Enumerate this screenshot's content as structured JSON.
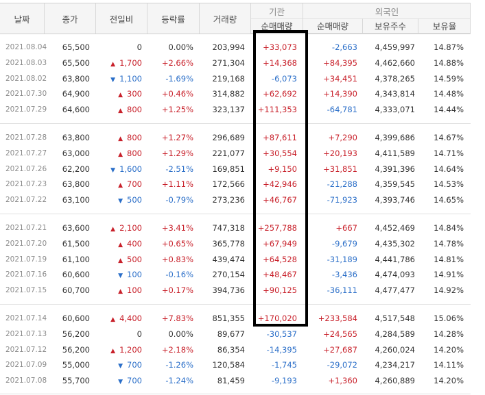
{
  "header": {
    "date": "날짜",
    "close": "종가",
    "change": "전일비",
    "rate": "등락률",
    "volume": "거래량",
    "institution": "기관",
    "institution_net": "순매매량",
    "foreign": "외국인",
    "foreign_net": "순매매량",
    "foreign_hold": "보유주수",
    "foreign_ratio": "보유율"
  },
  "colors": {
    "up": "#c8202a",
    "down": "#2a6ec8",
    "highlight": "#000000"
  },
  "groups": [
    {
      "rows": [
        {
          "date": "2021.08.04",
          "close": "65,500",
          "dir": "none",
          "change": "0",
          "rate": "0.00%",
          "volume": "203,994",
          "inst": "+33,073",
          "foreign": "-2,663",
          "hold": "4,459,997",
          "ratio": "14.87%"
        },
        {
          "date": "2021.08.03",
          "close": "65,500",
          "dir": "up",
          "change": "1,700",
          "rate": "+2.66%",
          "volume": "271,304",
          "inst": "+14,368",
          "foreign": "+84,395",
          "hold": "4,462,660",
          "ratio": "14.88%"
        },
        {
          "date": "2021.08.02",
          "close": "63,800",
          "dir": "down",
          "change": "1,100",
          "rate": "-1.69%",
          "volume": "219,168",
          "inst": "-6,073",
          "foreign": "+34,451",
          "hold": "4,378,265",
          "ratio": "14.59%"
        },
        {
          "date": "2021.07.30",
          "close": "64,900",
          "dir": "up",
          "change": "300",
          "rate": "+0.46%",
          "volume": "314,882",
          "inst": "+62,692",
          "foreign": "+14,390",
          "hold": "4,343,814",
          "ratio": "14.48%"
        },
        {
          "date": "2021.07.29",
          "close": "64,600",
          "dir": "up",
          "change": "800",
          "rate": "+1.25%",
          "volume": "323,137",
          "inst": "+111,353",
          "foreign": "-64,781",
          "hold": "4,333,071",
          "ratio": "14.44%"
        }
      ]
    },
    {
      "rows": [
        {
          "date": "2021.07.28",
          "close": "63,800",
          "dir": "up",
          "change": "800",
          "rate": "+1.27%",
          "volume": "296,689",
          "inst": "+87,611",
          "foreign": "+7,290",
          "hold": "4,399,686",
          "ratio": "14.67%"
        },
        {
          "date": "2021.07.27",
          "close": "63,000",
          "dir": "up",
          "change": "800",
          "rate": "+1.29%",
          "volume": "221,077",
          "inst": "+30,554",
          "foreign": "+20,193",
          "hold": "4,411,589",
          "ratio": "14.71%"
        },
        {
          "date": "2021.07.26",
          "close": "62,200",
          "dir": "down",
          "change": "1,600",
          "rate": "-2.51%",
          "volume": "169,851",
          "inst": "+9,150",
          "foreign": "+31,851",
          "hold": "4,391,396",
          "ratio": "14.64%"
        },
        {
          "date": "2021.07.23",
          "close": "63,800",
          "dir": "up",
          "change": "700",
          "rate": "+1.11%",
          "volume": "172,566",
          "inst": "+42,946",
          "foreign": "-21,288",
          "hold": "4,359,545",
          "ratio": "14.53%"
        },
        {
          "date": "2021.07.22",
          "close": "63,100",
          "dir": "down",
          "change": "500",
          "rate": "-0.79%",
          "volume": "273,236",
          "inst": "+46,767",
          "foreign": "-71,923",
          "hold": "4,393,746",
          "ratio": "14.65%"
        }
      ]
    },
    {
      "rows": [
        {
          "date": "2021.07.21",
          "close": "63,600",
          "dir": "up",
          "change": "2,100",
          "rate": "+3.41%",
          "volume": "747,318",
          "inst": "+257,788",
          "foreign": "+667",
          "hold": "4,452,469",
          "ratio": "14.84%"
        },
        {
          "date": "2021.07.20",
          "close": "61,500",
          "dir": "up",
          "change": "400",
          "rate": "+0.65%",
          "volume": "365,778",
          "inst": "+67,949",
          "foreign": "-9,679",
          "hold": "4,435,302",
          "ratio": "14.78%"
        },
        {
          "date": "2021.07.19",
          "close": "61,100",
          "dir": "up",
          "change": "500",
          "rate": "+0.83%",
          "volume": "439,474",
          "inst": "+64,528",
          "foreign": "-31,189",
          "hold": "4,441,786",
          "ratio": "14.81%"
        },
        {
          "date": "2021.07.16",
          "close": "60,600",
          "dir": "down",
          "change": "100",
          "rate": "-0.16%",
          "volume": "270,154",
          "inst": "+48,467",
          "foreign": "-3,436",
          "hold": "4,474,093",
          "ratio": "14.91%"
        },
        {
          "date": "2021.07.15",
          "close": "60,700",
          "dir": "up",
          "change": "100",
          "rate": "+0.17%",
          "volume": "394,736",
          "inst": "+90,125",
          "foreign": "-36,111",
          "hold": "4,477,477",
          "ratio": "14.92%"
        }
      ]
    },
    {
      "rows": [
        {
          "date": "2021.07.14",
          "close": "60,600",
          "dir": "up",
          "change": "4,400",
          "rate": "+7.83%",
          "volume": "851,355",
          "inst": "+170,020",
          "foreign": "+233,584",
          "hold": "4,517,548",
          "ratio": "15.06%"
        },
        {
          "date": "2021.07.13",
          "close": "56,200",
          "dir": "none",
          "change": "0",
          "rate": "0.00%",
          "volume": "89,677",
          "inst": "-30,537",
          "foreign": "+24,565",
          "hold": "4,284,589",
          "ratio": "14.28%"
        },
        {
          "date": "2021.07.12",
          "close": "56,200",
          "dir": "up",
          "change": "1,200",
          "rate": "+2.18%",
          "volume": "86,354",
          "inst": "-14,395",
          "foreign": "+27,687",
          "hold": "4,260,024",
          "ratio": "14.20%"
        },
        {
          "date": "2021.07.09",
          "close": "55,000",
          "dir": "down",
          "change": "700",
          "rate": "-1.26%",
          "volume": "120,584",
          "inst": "-1,745",
          "foreign": "-29,072",
          "hold": "4,234,217",
          "ratio": "14.11%"
        },
        {
          "date": "2021.07.08",
          "close": "55,700",
          "dir": "down",
          "change": "700",
          "rate": "-1.24%",
          "volume": "81,459",
          "inst": "-9,193",
          "foreign": "+1,360",
          "hold": "4,260,889",
          "ratio": "14.20%"
        }
      ]
    }
  ]
}
